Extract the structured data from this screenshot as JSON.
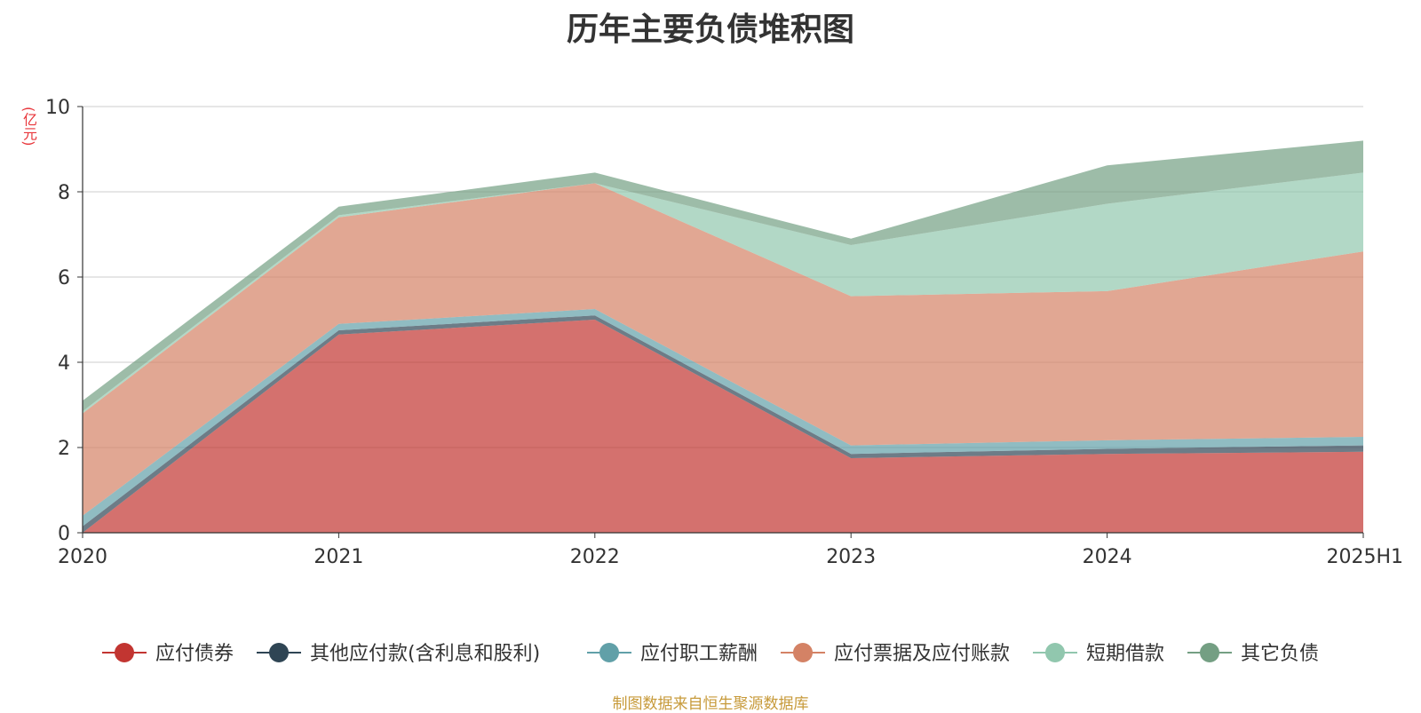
{
  "chart_data": {
    "type": "area",
    "stacked": true,
    "title": "历年主要负债堆积图",
    "unit": "(亿元)",
    "source": "制图数据来自恒生聚源数据库",
    "categories": [
      "2020",
      "2021",
      "2022",
      "2023",
      "2024",
      "2025H1"
    ],
    "ylim": [
      0,
      10
    ],
    "yticks": [
      "0",
      "2",
      "4",
      "6",
      "8",
      "10"
    ],
    "grid": true,
    "legend_position": "bottom",
    "series": [
      {
        "name": "应付债券",
        "color": "#c23531",
        "values": [
          0.0,
          4.65,
          5.0,
          1.75,
          1.85,
          1.9
        ]
      },
      {
        "name": "其他应付款(含利息和股利)",
        "color": "#2f4554",
        "values": [
          0.15,
          0.1,
          0.1,
          0.1,
          0.12,
          0.15
        ]
      },
      {
        "name": "应付职工薪酬",
        "color": "#61a0a8",
        "values": [
          0.25,
          0.15,
          0.15,
          0.2,
          0.2,
          0.2
        ]
      },
      {
        "name": "应付票据及应付账款",
        "color": "#d48265",
        "values": [
          2.4,
          2.5,
          2.95,
          3.5,
          3.5,
          4.35
        ]
      },
      {
        "name": "短期借款",
        "color": "#91c7ae",
        "values": [
          0.05,
          0.05,
          0.0,
          1.2,
          2.05,
          1.85
        ]
      },
      {
        "name": "其它负债",
        "color": "#749f83",
        "values": [
          0.25,
          0.2,
          0.25,
          0.15,
          0.9,
          0.75
        ]
      }
    ]
  }
}
